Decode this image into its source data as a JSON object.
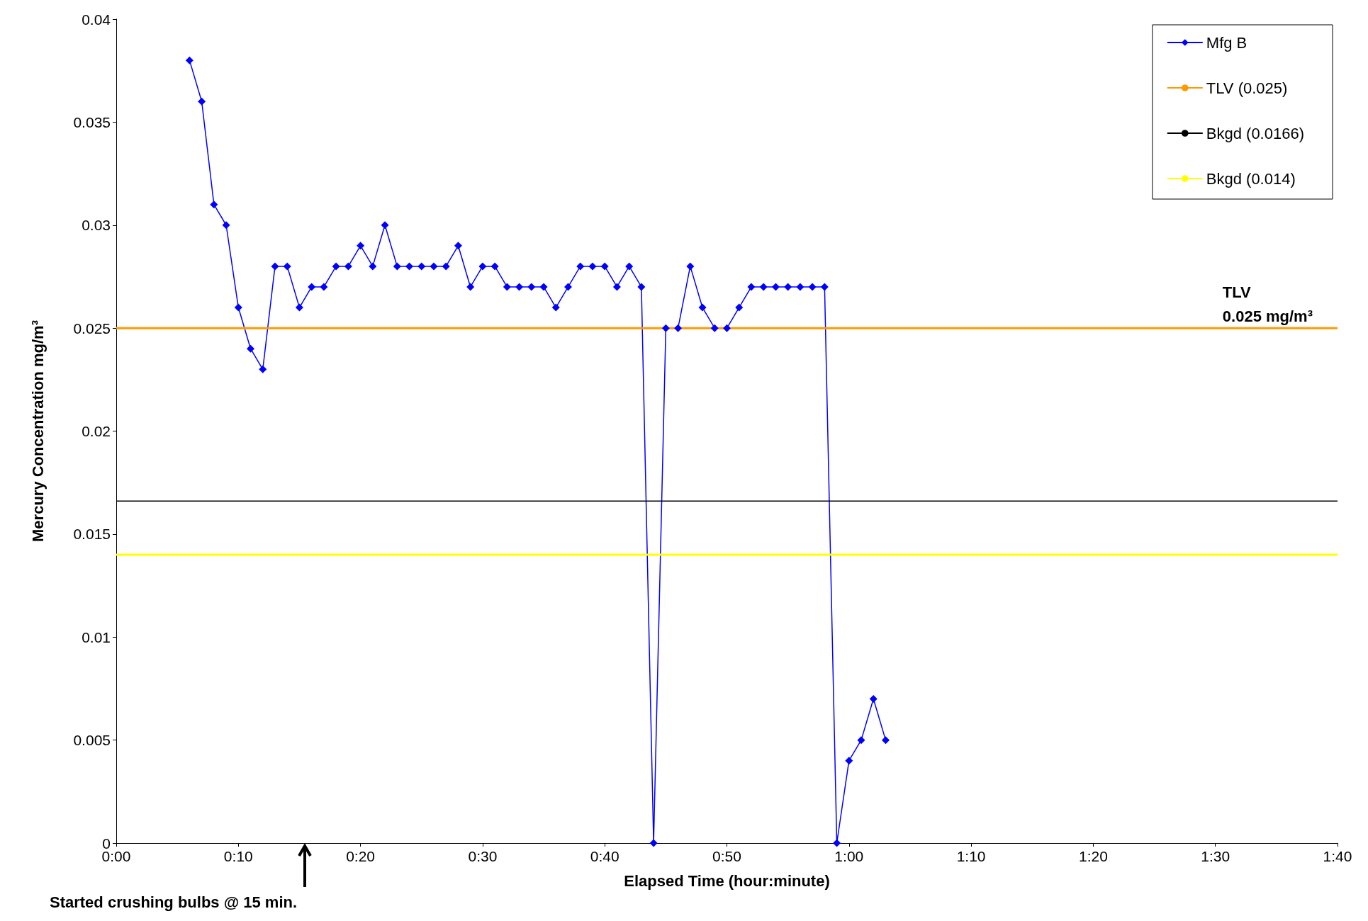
{
  "chart_data": {
    "type": "line",
    "xlabel": "Elapsed Time (hour:minute)",
    "ylabel": "Mercury Concentration mg/m³",
    "xlim": [
      0,
      100
    ],
    "xticks": [
      {
        "value": 0,
        "label": "0:00"
      },
      {
        "value": 10,
        "label": "0:10"
      },
      {
        "value": 20,
        "label": "0:20"
      },
      {
        "value": 30,
        "label": "0:30"
      },
      {
        "value": 40,
        "label": "0:40"
      },
      {
        "value": 50,
        "label": "0:50"
      },
      {
        "value": 60,
        "label": "1:00"
      },
      {
        "value": 70,
        "label": "1:10"
      },
      {
        "value": 80,
        "label": "1:20"
      },
      {
        "value": 90,
        "label": "1:30"
      },
      {
        "value": 100,
        "label": "1:40"
      }
    ],
    "ylim": [
      0,
      0.04
    ],
    "yticks": [
      0,
      0.005,
      0.01,
      0.015,
      0.02,
      0.025,
      0.03,
      0.035,
      0.04
    ],
    "x": [
      6,
      7,
      8,
      9,
      10,
      11,
      12,
      13,
      14,
      15,
      16,
      17,
      18,
      19,
      20,
      21,
      22,
      23,
      24,
      25,
      26,
      27,
      28,
      29,
      30,
      31,
      32,
      33,
      34,
      35,
      36,
      37,
      38,
      39,
      40,
      41,
      42,
      43,
      44,
      45,
      46,
      47,
      48,
      49,
      50,
      51,
      52,
      53,
      54,
      55,
      56,
      57,
      58,
      59,
      60,
      61,
      62,
      63
    ],
    "series": [
      {
        "name": "Mfg B",
        "color": "#0000ff",
        "values": [
          0.038,
          0.036,
          0.031,
          0.03,
          0.026,
          0.024,
          0.023,
          0.028,
          0.028,
          0.026,
          0.027,
          0.027,
          0.028,
          0.028,
          0.029,
          0.028,
          0.03,
          0.028,
          0.028,
          0.028,
          0.028,
          0.028,
          0.029,
          0.027,
          0.028,
          0.028,
          0.027,
          0.027,
          0.027,
          0.027,
          0.026,
          0.027,
          0.028,
          0.028,
          0.028,
          0.027,
          0.028,
          0.027,
          0,
          0.025,
          0.025,
          0.028,
          0.026,
          0.025,
          0.025,
          0.026,
          0.027,
          0.027,
          0.027,
          0.027,
          0.027,
          0.027,
          0.027,
          0,
          0.004,
          0.005,
          0.007,
          0.005
        ]
      }
    ],
    "marker": "diamond",
    "line_style": "solid",
    "grid": false,
    "legend": "top right",
    "ref_lines": [
      {
        "axis": "y",
        "value": 0.025,
        "label": "TLV (0.025)",
        "color": "#ff9900"
      },
      {
        "axis": "y",
        "value": 0.0166,
        "label": "Bkgd (0.0166)",
        "color": "#000000"
      },
      {
        "axis": "y",
        "value": 0.014,
        "label": "Bkgd (0.014)",
        "color": "#ffff00"
      }
    ],
    "annotations": [
      "TLV\n0.025 mg/m³",
      "Started crushing bulbs @ 15 min."
    ]
  }
}
